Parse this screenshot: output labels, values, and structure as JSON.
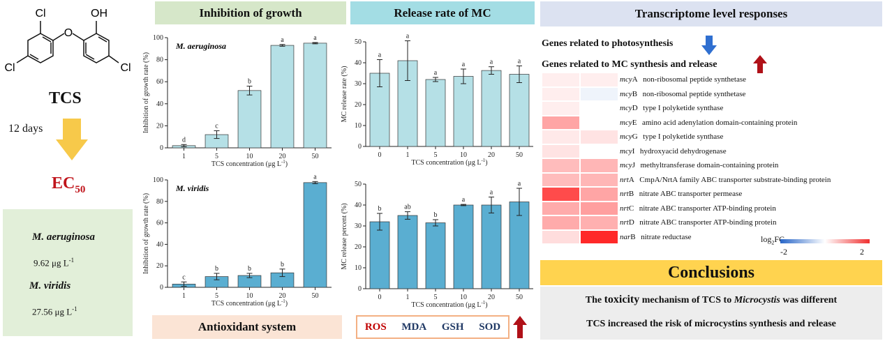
{
  "left": {
    "cl_top": "Cl",
    "oh_top": "OH",
    "cl_left": "Cl",
    "cl_right": "Cl",
    "compound": "TCS",
    "duration": "12 days",
    "ec50_main": "EC",
    "ec50_sub": "50",
    "box": {
      "sp1": "M. aeruginosa",
      "val1": "9.62 μg L",
      "sp2": "M. viridis",
      "val2": "27.56 μg L",
      "unit_sup": "-1"
    }
  },
  "headers": {
    "growth": "Inhibition of growth",
    "release": "Release rate of MC",
    "transcriptome": "Transcriptome level responses",
    "antioxidant": "Antioxidant system",
    "conclusions": "Conclusions"
  },
  "antioxidant_items": [
    "ROS",
    "MDA",
    "GSH",
    "SOD"
  ],
  "transcriptome": {
    "photo": "Genes related to photosynthesis",
    "mc": "Genes related to MC synthesis and release",
    "legend_title": "log",
    "legend_sub": "2",
    "legend_suffix": "FC",
    "legend_min": "-2",
    "legend_max": "2",
    "genes": [
      {
        "name": "mcy",
        "suffix": "A",
        "desc": "non-ribosomal peptide synthetase",
        "c1": 0.15,
        "c2": 0.15
      },
      {
        "name": "mcy",
        "suffix": "B",
        "desc": "non-ribosomal peptide synthetase",
        "c1": 0.15,
        "c2": -0.15
      },
      {
        "name": "mcy",
        "suffix": "D",
        "desc": "type I polyketide synthase",
        "c1": 0.15,
        "c2": 0.0
      },
      {
        "name": "mcy",
        "suffix": "E",
        "desc": "amino acid adenylation domain-containing protein",
        "c1": 0.8,
        "c2": 0.0
      },
      {
        "name": "mcy",
        "suffix": "G",
        "desc": "type I polyketide synthase",
        "c1": 0.2,
        "c2": 0.25
      },
      {
        "name": "mcy",
        "suffix": "I",
        "desc": "hydroxyacid dehydrogenase",
        "c1": 0.25,
        "c2": 0.0
      },
      {
        "name": "mcy",
        "suffix": "J",
        "desc": "methyltransferase domain-containing protein",
        "c1": 0.6,
        "c2": 0.65
      },
      {
        "name": "nrt",
        "suffix": "A",
        "desc": "CmpA/NrtA family ABC transporter substrate-binding protein",
        "c1": 0.6,
        "c2": 0.65
      },
      {
        "name": "nrt",
        "suffix": "B",
        "desc": "nitrate ABC transporter permease",
        "c1": 1.6,
        "c2": 0.8
      },
      {
        "name": "nrt",
        "suffix": "C",
        "desc": "nitrate ABC transporter ATP-binding protein",
        "c1": 0.75,
        "c2": 0.85
      },
      {
        "name": "nrt",
        "suffix": "D",
        "desc": "nitrate ABC transporter ATP-binding protein",
        "c1": 0.75,
        "c2": 0.7
      },
      {
        "name": "nar",
        "suffix": "B",
        "desc": "nitrate reductase",
        "c1": 0.3,
        "c2": 1.9
      }
    ]
  },
  "conclusions": {
    "line1_pre": "The ",
    "line1_big": "toxicity",
    "line1_mid": " mechanism of TCS to ",
    "line1_ital": "Microcystis",
    "line1_post": " was different",
    "line2": "TCS increased the risk of microcystins synthesis and release"
  },
  "chart_data": [
    {
      "type": "bar",
      "title": "M. aeruginosa",
      "categories": [
        "1",
        "5",
        "10",
        "20",
        "50"
      ],
      "values": [
        2,
        12,
        52,
        93,
        95
      ],
      "errors": [
        1,
        3.5,
        4,
        0.8,
        0.6
      ],
      "letters": [
        "d",
        "c",
        "b",
        "a",
        "a"
      ],
      "xlabel": "TCS concentration (μg L",
      "xlabel_sup": "-1",
      "xlabel_end": ")",
      "ylabel": "Inhibition of growth rate (%)",
      "yticks": [
        "0",
        "20",
        "40",
        "60",
        "80",
        "100"
      ],
      "ylim": [
        0,
        100
      ],
      "color": "#b5e0e6"
    },
    {
      "type": "bar",
      "title": "",
      "categories": [
        "0",
        "1",
        "5",
        "10",
        "20",
        "50"
      ],
      "values": [
        35,
        41,
        32,
        33.5,
        36.3,
        34.5
      ],
      "errors": [
        6.5,
        9.5,
        1,
        3.5,
        1.8,
        4
      ],
      "letters": [
        "a",
        "a",
        "a",
        "a",
        "a",
        "a"
      ],
      "xlabel": "TCS concentration (μg L",
      "xlabel_sup": "-1",
      "xlabel_end": ")",
      "ylabel": "MC release rate (%)",
      "yticks": [
        "0",
        "10",
        "20",
        "30",
        "40",
        "50"
      ],
      "ylim": [
        0,
        50
      ],
      "color": "#b5e0e6"
    },
    {
      "type": "bar",
      "title": "M. viridis",
      "categories": [
        "1",
        "5",
        "10",
        "20",
        "50"
      ],
      "values": [
        3,
        10,
        11,
        13.5,
        97.5
      ],
      "errors": [
        2,
        3,
        2,
        3.5,
        1
      ],
      "letters": [
        "c",
        "b",
        "b",
        "b",
        "a"
      ],
      "xlabel": "TCS concentration (μg L",
      "xlabel_sup": "-1",
      "xlabel_end": ")",
      "ylabel": "Inhibition of growth rate (%)",
      "yticks": [
        "0",
        "20",
        "40",
        "60",
        "80",
        "100"
      ],
      "ylim": [
        0,
        100
      ],
      "color": "#5aaed1"
    },
    {
      "type": "bar",
      "title": "",
      "categories": [
        "0",
        "1",
        "5",
        "10",
        "20",
        "50"
      ],
      "values": [
        32,
        35,
        31.5,
        40,
        40,
        41.5
      ],
      "errors": [
        4,
        1.8,
        1.5,
        0.3,
        3.8,
        6.5
      ],
      "letters": [
        "b",
        "ab",
        "b",
        "a",
        "a",
        "a"
      ],
      "xlabel": "TCS concentration (μg L",
      "xlabel_sup": "-1",
      "xlabel_end": ")",
      "ylabel": "MC release percent (%)",
      "yticks": [
        "0",
        "10",
        "20",
        "30",
        "40",
        "50"
      ],
      "ylim": [
        0,
        50
      ],
      "color": "#5aaed1"
    }
  ]
}
